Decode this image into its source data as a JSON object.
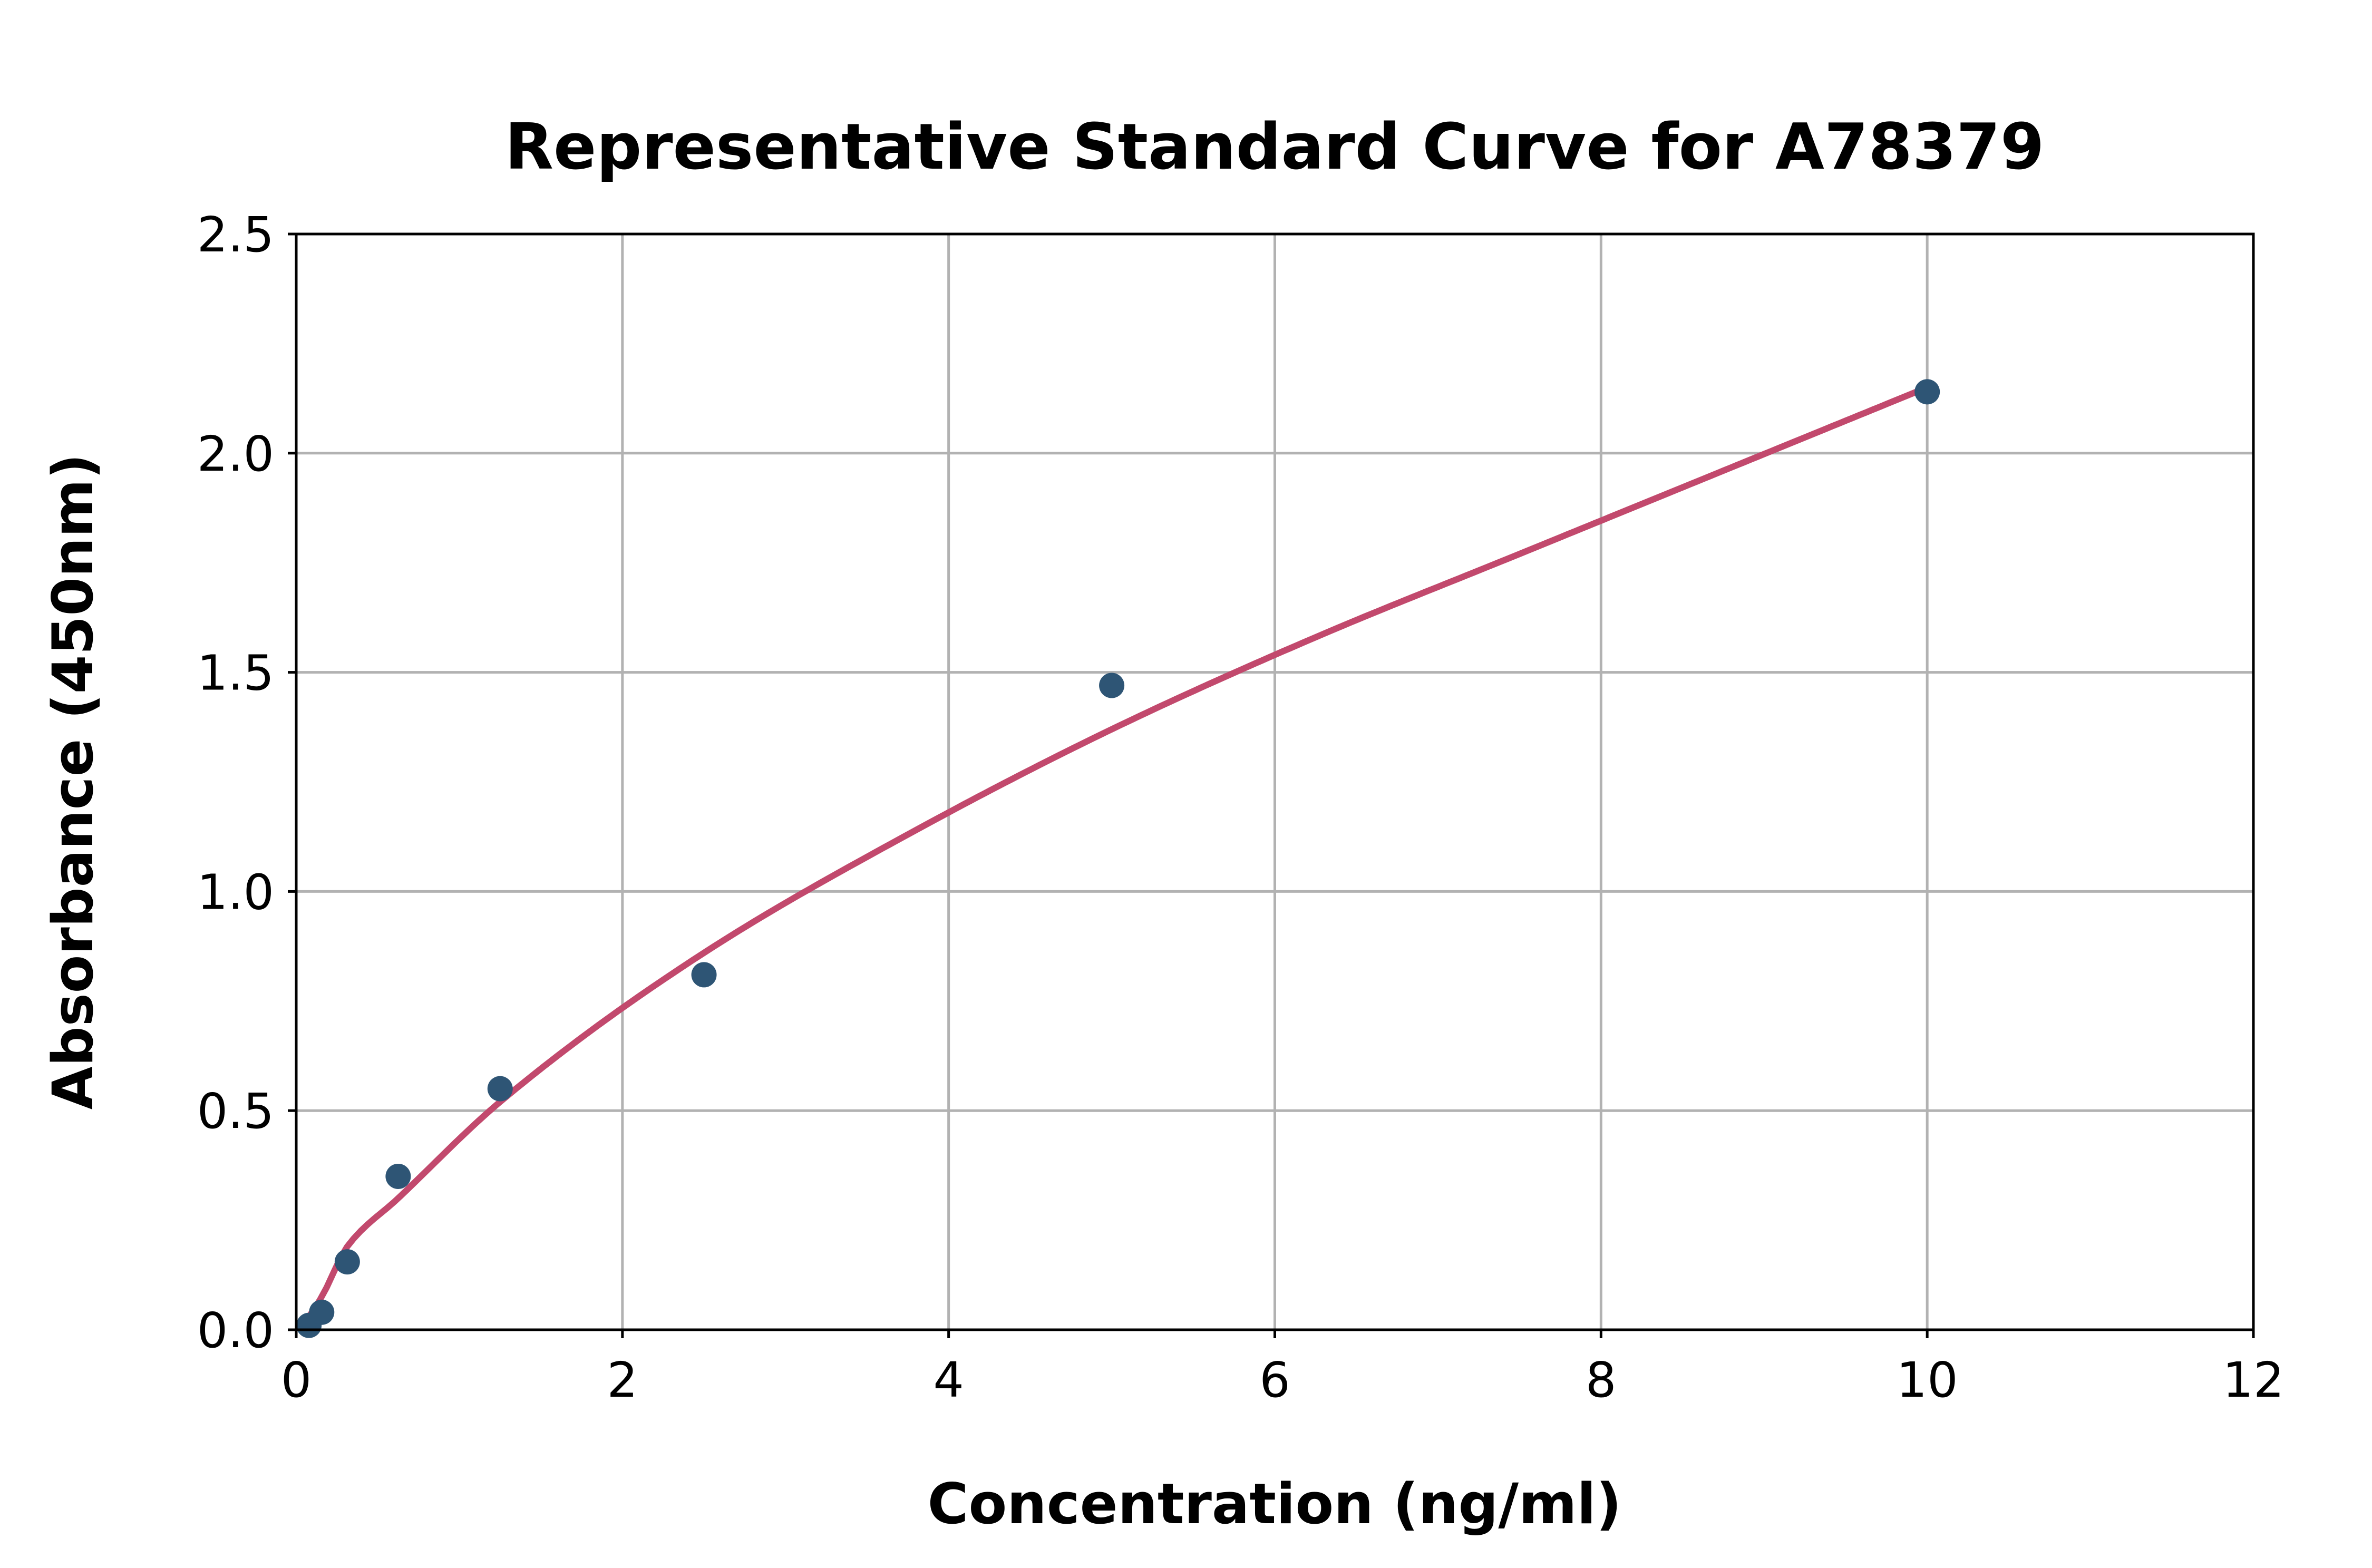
{
  "figure": {
    "background": "#ffffff"
  },
  "chart_data": {
    "type": "scatter",
    "title": "Representative Standard Curve for A78379",
    "xlabel": "Concentration (ng/ml)",
    "ylabel": "Absorbance (450nm)",
    "xlim": [
      0,
      12
    ],
    "ylim": [
      0,
      2.5
    ],
    "grid": true,
    "legend": "none",
    "x_ticks": [
      {
        "v": 0,
        "label": "0"
      },
      {
        "v": 2,
        "label": "2"
      },
      {
        "v": 4,
        "label": "4"
      },
      {
        "v": 6,
        "label": "6"
      },
      {
        "v": 8,
        "label": "8"
      },
      {
        "v": 10,
        "label": "10"
      },
      {
        "v": 12,
        "label": "12"
      }
    ],
    "y_ticks": [
      {
        "v": 0,
        "label": "0.0"
      },
      {
        "v": 0.5,
        "label": "0.5"
      },
      {
        "v": 1.0,
        "label": "1.0"
      },
      {
        "v": 1.5,
        "label": "1.5"
      },
      {
        "v": 2.0,
        "label": "2.0"
      },
      {
        "v": 2.5,
        "label": "2.5"
      }
    ],
    "series": [
      {
        "name": "standards",
        "marker": "circle",
        "points": [
          {
            "x": 0.078,
            "y": 0.01
          },
          {
            "x": 0.156,
            "y": 0.04
          },
          {
            "x": 0.313,
            "y": 0.155
          },
          {
            "x": 0.625,
            "y": 0.35
          },
          {
            "x": 1.25,
            "y": 0.55
          },
          {
            "x": 2.5,
            "y": 0.81
          },
          {
            "x": 5,
            "y": 1.47
          },
          {
            "x": 10,
            "y": 2.14
          }
        ]
      }
    ],
    "fit_curve": {
      "name": "fitted-standard-curve",
      "anchors": [
        {
          "x": 0.02,
          "y": 0.004
        },
        {
          "x": 0.078,
          "y": 0.03
        },
        {
          "x": 0.156,
          "y": 0.075
        },
        {
          "x": 0.313,
          "y": 0.19
        },
        {
          "x": 0.625,
          "y": 0.3
        },
        {
          "x": 1.25,
          "y": 0.52
        },
        {
          "x": 2.5,
          "y": 0.86
        },
        {
          "x": 3.75,
          "y": 1.13
        },
        {
          "x": 5,
          "y": 1.37
        },
        {
          "x": 6.25,
          "y": 1.58
        },
        {
          "x": 7.5,
          "y": 1.77
        },
        {
          "x": 8.75,
          "y": 1.96
        },
        {
          "x": 10,
          "y": 2.15
        }
      ]
    },
    "colors": {
      "marker": "#2e5575",
      "curve": "#c2496d",
      "grid": "#b2b2b2",
      "axis": "#000000",
      "text": "#000000",
      "background": "#ffffff"
    }
  }
}
